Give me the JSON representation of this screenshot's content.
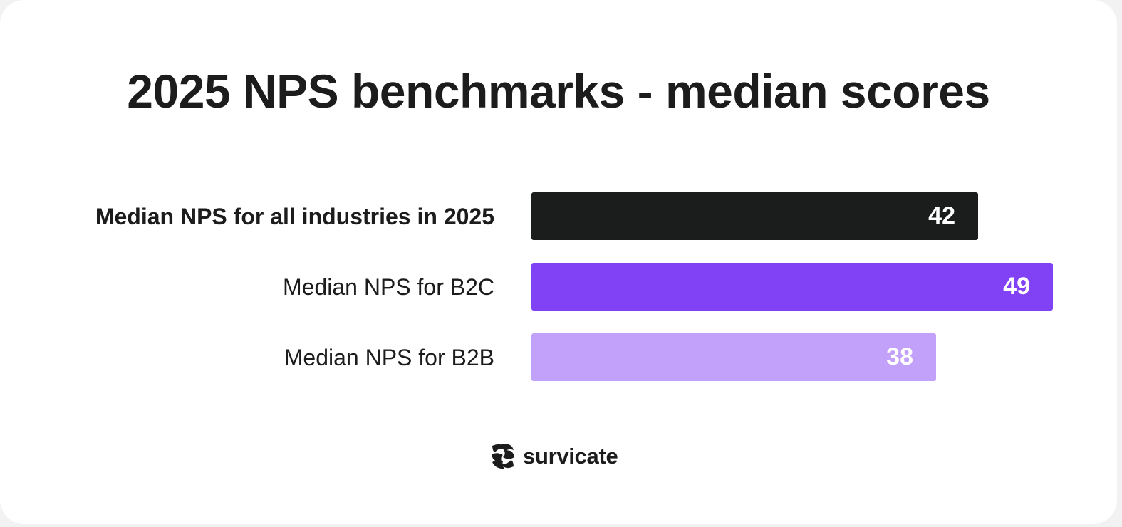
{
  "chart_data": {
    "type": "bar",
    "orientation": "horizontal",
    "title": "2025 NPS benchmarks - median scores",
    "categories": [
      "Median NPS for all industries in 2025",
      "Median NPS for B2C",
      "Median NPS for B2B"
    ],
    "values": [
      42,
      49,
      38
    ],
    "value_labels": [
      "42",
      "49",
      "38"
    ],
    "colors": [
      "#1b1c1c",
      "#8142f6",
      "#c2a1fa"
    ],
    "bold_category_index": 0,
    "xlim": [
      0,
      49
    ],
    "xlabel": "",
    "ylabel": "",
    "grid": false,
    "legend": "none"
  },
  "brand": {
    "name": "survicate",
    "icon": "survicate-logo-icon"
  }
}
